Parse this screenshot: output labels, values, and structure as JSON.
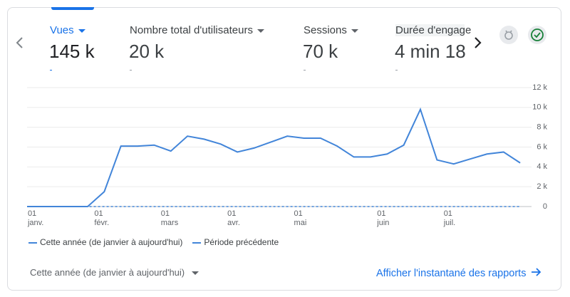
{
  "metrics": [
    {
      "label": "Vues",
      "value": "145 k"
    },
    {
      "label": "Nombre total d'utilisateurs",
      "value": "20 k"
    },
    {
      "label": "Sessions",
      "value": "70 k"
    },
    {
      "label": "Durée d'engage",
      "value": "4 min 18"
    }
  ],
  "chart_data": {
    "type": "line",
    "categories": [
      null,
      "01\njanv.",
      null,
      null,
      null,
      "01\nfévr.",
      null,
      null,
      null,
      "01\nmars",
      null,
      null,
      null,
      "01\navr.",
      null,
      null,
      null,
      "01\nmai",
      null,
      null,
      null,
      null,
      "01\njuin",
      null,
      null,
      null,
      "01\njuil.",
      null,
      null,
      null,
      null
    ],
    "series": [
      {
        "name": "Cette année (de janvier à aujourd'hui)",
        "color": "#4285d9",
        "values": [
          0,
          0,
          0,
          0,
          0,
          1500,
          6100,
          6100,
          6200,
          5600,
          7100,
          6800,
          6300,
          5500,
          5900,
          6500,
          7100,
          6900,
          6900,
          6100,
          5000,
          5000,
          5300,
          6200,
          9800,
          4700,
          4300,
          4800,
          5300,
          5500,
          4400
        ]
      },
      {
        "name": "Période précédente",
        "color": "#4285d9",
        "dashed": true,
        "values": [
          0,
          0,
          0,
          0,
          0,
          0,
          0,
          0,
          0,
          0,
          0,
          0,
          0,
          0,
          0,
          0,
          0,
          0,
          0,
          0,
          0,
          0,
          0,
          0,
          0,
          0,
          0,
          0,
          0,
          0,
          0
        ]
      }
    ],
    "ylim": [
      0,
      12000
    ],
    "yticks": [
      0,
      {
        "value": 2000,
        "label": "2 k"
      },
      {
        "value": 4000,
        "label": "4 k"
      },
      {
        "value": 6000,
        "label": "6 k"
      },
      {
        "value": 8000,
        "label": "8 k"
      },
      {
        "value": 10000,
        "label": "10 k"
      },
      {
        "value": 12000,
        "label": "12 k"
      }
    ],
    "grid": true
  },
  "footer": {
    "period": "Cette année (de janvier à aujourd'hui)",
    "link": "Afficher l'instantané des rapports"
  }
}
